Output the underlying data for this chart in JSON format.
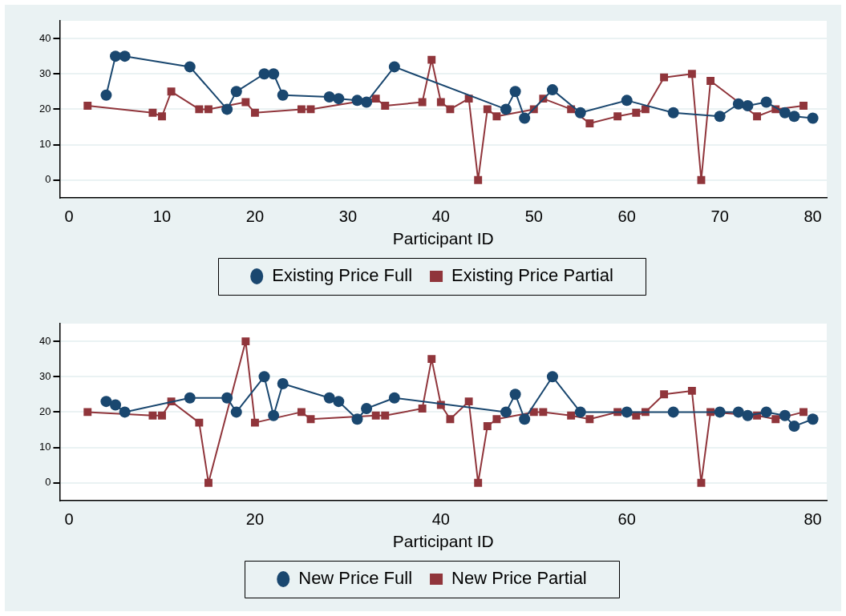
{
  "chart_data": [
    {
      "type": "line",
      "xlabel": "Participant ID",
      "xlim": [
        -1,
        81.5
      ],
      "xticks": [
        0,
        10,
        20,
        30,
        40,
        50,
        60,
        70,
        80
      ],
      "ylim": [
        -5,
        45
      ],
      "yticks": [
        0,
        10,
        20,
        30,
        40
      ],
      "grid": "y",
      "legend": "bottom",
      "series": [
        {
          "name": "Existing Price Full",
          "color": "#1a476f",
          "marker": "circle",
          "x": [
            4,
            5,
            6,
            13,
            17,
            18,
            21,
            22,
            23,
            28,
            29,
            31,
            32,
            35,
            47,
            48,
            49,
            52,
            55,
            60,
            65,
            70,
            72,
            73,
            75,
            77,
            78,
            80
          ],
          "values": [
            24,
            35,
            35,
            32,
            20,
            25,
            30,
            30,
            24,
            23.5,
            23,
            22.5,
            22,
            32,
            20,
            25,
            17.5,
            25.5,
            19,
            22.5,
            19,
            18,
            21.5,
            21,
            22,
            19,
            18,
            17.5
          ]
        },
        {
          "name": "Existing Price Partial",
          "color": "#90353b",
          "marker": "square",
          "x": [
            2,
            9,
            10,
            11,
            14,
            15,
            19,
            20,
            25,
            26,
            33,
            34,
            38,
            39,
            40,
            41,
            43,
            44,
            45,
            46,
            50,
            51,
            54,
            56,
            59,
            61,
            62,
            64,
            67,
            68,
            69,
            74,
            76,
            79
          ],
          "values": [
            21,
            19,
            18,
            25,
            20,
            20,
            22,
            19,
            20,
            20,
            23,
            21,
            22,
            34,
            22,
            20,
            23,
            0,
            20,
            18,
            20,
            23,
            20,
            16,
            18,
            19,
            20,
            29,
            30,
            0,
            28,
            18,
            20,
            21
          ]
        }
      ]
    },
    {
      "type": "line",
      "xlabel": "Participant ID",
      "xlim": [
        -1,
        81.5
      ],
      "xticks": [
        0,
        20,
        40,
        60,
        80
      ],
      "ylim": [
        -5,
        45
      ],
      "yticks": [
        0,
        10,
        20,
        30,
        40
      ],
      "grid": "y",
      "legend": "bottom",
      "series": [
        {
          "name": "New Price Full",
          "color": "#1a476f",
          "marker": "circle",
          "x": [
            4,
            5,
            6,
            13,
            17,
            18,
            21,
            22,
            23,
            28,
            29,
            31,
            32,
            35,
            47,
            48,
            49,
            52,
            55,
            60,
            65,
            70,
            72,
            73,
            75,
            77,
            78,
            80
          ],
          "values": [
            23,
            22,
            20,
            24,
            24,
            20,
            30,
            19,
            28,
            24,
            23,
            18,
            21,
            24,
            20,
            25,
            18,
            30,
            20,
            20,
            20,
            20,
            20,
            19,
            20,
            19,
            16,
            18
          ]
        },
        {
          "name": "New Price Partial",
          "color": "#90353b",
          "marker": "square",
          "x": [
            2,
            9,
            10,
            11,
            14,
            15,
            19,
            20,
            25,
            26,
            33,
            34,
            38,
            39,
            40,
            41,
            43,
            44,
            45,
            46,
            50,
            51,
            54,
            56,
            59,
            61,
            62,
            64,
            67,
            68,
            69,
            74,
            76,
            79
          ],
          "values": [
            20,
            19,
            19,
            23,
            17,
            0,
            40,
            17,
            20,
            18,
            19,
            19,
            21,
            35,
            22,
            18,
            23,
            0,
            16,
            18,
            20,
            20,
            19,
            18,
            20,
            19,
            20,
            25,
            26,
            0,
            20,
            19,
            18,
            20
          ]
        }
      ]
    }
  ]
}
